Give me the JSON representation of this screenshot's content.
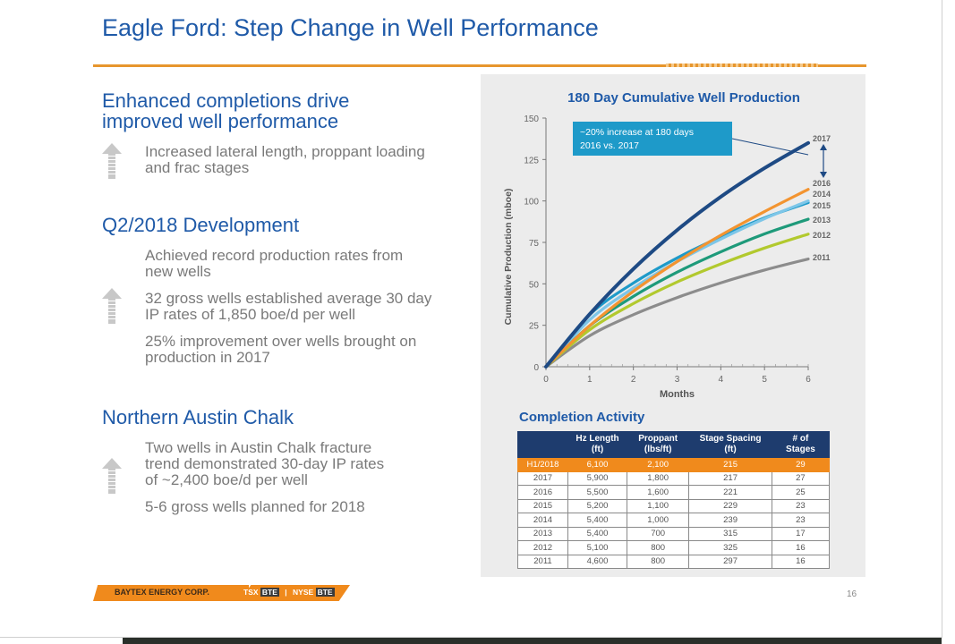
{
  "title": "Eagle Ford: Step Change in Well Performance",
  "left": {
    "s1": {
      "heading1": "Enhanced completions drive",
      "heading2": "improved well performance",
      "bullet1a": "Increased lateral length, proppant loading",
      "bullet1b": "and frac stages"
    },
    "s2": {
      "heading": "Q2/2018 Development",
      "bullet1a": "Achieved record production rates from",
      "bullet1b": "new wells",
      "bullet2a": "32 gross wells established average 30 day",
      "bullet2b": "IP rates of 1,850 boe/d per well",
      "bullet3a": "25% improvement over wells brought on",
      "bullet3b": "production in 2017"
    },
    "s3": {
      "heading": "Northern Austin Chalk",
      "bullet1a": "Two wells in Austin Chalk fracture",
      "bullet1b": "trend demonstrated 30-day IP rates",
      "bullet1c": "of ~2,400 boe/d per well",
      "bullet2": "5-6 gross wells planned for 2018"
    }
  },
  "chart_data": {
    "type": "line",
    "title": "180 Day Cumulative Well Production",
    "xlabel": "Months",
    "ylabel": "Cumulative Production (mboe)",
    "xlim": [
      0,
      6
    ],
    "ylim": [
      0,
      150
    ],
    "xticks": [
      0,
      1,
      2,
      3,
      4,
      5,
      6
    ],
    "yticks": [
      0,
      25,
      50,
      75,
      100,
      125,
      150
    ],
    "annotation": {
      "line1": "~20% increase at 180 days",
      "line2": "2016 vs. 2017"
    },
    "series": [
      {
        "name": "2011",
        "color": "#8c8c8c",
        "x": [
          0,
          1,
          2,
          3,
          4,
          5,
          6
        ],
        "y": [
          0,
          18.7,
          31.4,
          41.7,
          50.6,
          58.3,
          65
        ]
      },
      {
        "name": "2012",
        "color": "#b2c92e",
        "x": [
          0,
          1,
          2,
          3,
          4,
          5,
          6
        ],
        "y": [
          0,
          22.3,
          38.1,
          51.1,
          62,
          71.6,
          80
        ]
      },
      {
        "name": "2013",
        "color": "#1e9a7a",
        "x": [
          0,
          1,
          2,
          3,
          4,
          5,
          6
        ],
        "y": [
          0,
          24.7,
          42.4,
          57,
          69.3,
          80.1,
          89
        ]
      },
      {
        "name": "2015",
        "color": "#1e9ac9",
        "x": [
          0,
          1,
          2,
          3,
          4,
          5,
          6
        ],
        "y": [
          0,
          31.4,
          50.5,
          65.6,
          78.4,
          89.8,
          99
        ]
      },
      {
        "name": "2014",
        "color": "#7dc6e8",
        "x": [
          0,
          1,
          2,
          3,
          4,
          5,
          6
        ],
        "y": [
          0,
          28.3,
          47.5,
          63.4,
          77,
          89.3,
          100
        ]
      },
      {
        "name": "2016",
        "color": "#f39430",
        "x": [
          0,
          1,
          2,
          3,
          4,
          5,
          6
        ],
        "y": [
          0,
          24.7,
          45.5,
          63.4,
          79.3,
          93.6,
          107
        ]
      },
      {
        "name": "2017",
        "color": "#1e4a84",
        "x": [
          0,
          1,
          2,
          3,
          4,
          5,
          6
        ],
        "y": [
          0,
          31.7,
          59,
          82.4,
          102.5,
          119.8,
          135
        ]
      }
    ],
    "series_label_order": [
      "2017",
      "2016",
      "2014",
      "2015",
      "2013",
      "2012",
      "2011"
    ]
  },
  "completion_table": {
    "title": "Completion Activity",
    "headers": [
      {
        "a": "",
        "b": ""
      },
      {
        "a": "Hz Length",
        "b": "(ft)"
      },
      {
        "a": "Proppant",
        "b": "(lbs/ft)"
      },
      {
        "a": "Stage Spacing",
        "b": "(ft)"
      },
      {
        "a": "# of",
        "b": "Stages"
      }
    ],
    "rows": [
      {
        "year": "H1/2018",
        "hz_length": "6,100",
        "proppant": "2,100",
        "spacing": "215",
        "stages": "29",
        "highlight": true
      },
      {
        "year": "2017",
        "hz_length": "5,900",
        "proppant": "1,800",
        "spacing": "217",
        "stages": "27"
      },
      {
        "year": "2016",
        "hz_length": "5,500",
        "proppant": "1,600",
        "spacing": "221",
        "stages": "25"
      },
      {
        "year": "2015",
        "hz_length": "5,200",
        "proppant": "1,100",
        "spacing": "229",
        "stages": "23"
      },
      {
        "year": "2014",
        "hz_length": "5,400",
        "proppant": "1,000",
        "spacing": "239",
        "stages": "23"
      },
      {
        "year": "2013",
        "hz_length": "5,400",
        "proppant": "700",
        "spacing": "315",
        "stages": "17"
      },
      {
        "year": "2012",
        "hz_length": "5,100",
        "proppant": "800",
        "spacing": "325",
        "stages": "16"
      },
      {
        "year": "2011",
        "hz_length": "4,600",
        "proppant": "800",
        "spacing": "297",
        "stages": "16"
      }
    ]
  },
  "footer": {
    "company": "BAYTEX ENERGY CORP.",
    "tsx": "TSX ",
    "tsx_code": "BTE",
    "nyse": "NYSE ",
    "nyse_code": "BTE",
    "page": "16"
  }
}
